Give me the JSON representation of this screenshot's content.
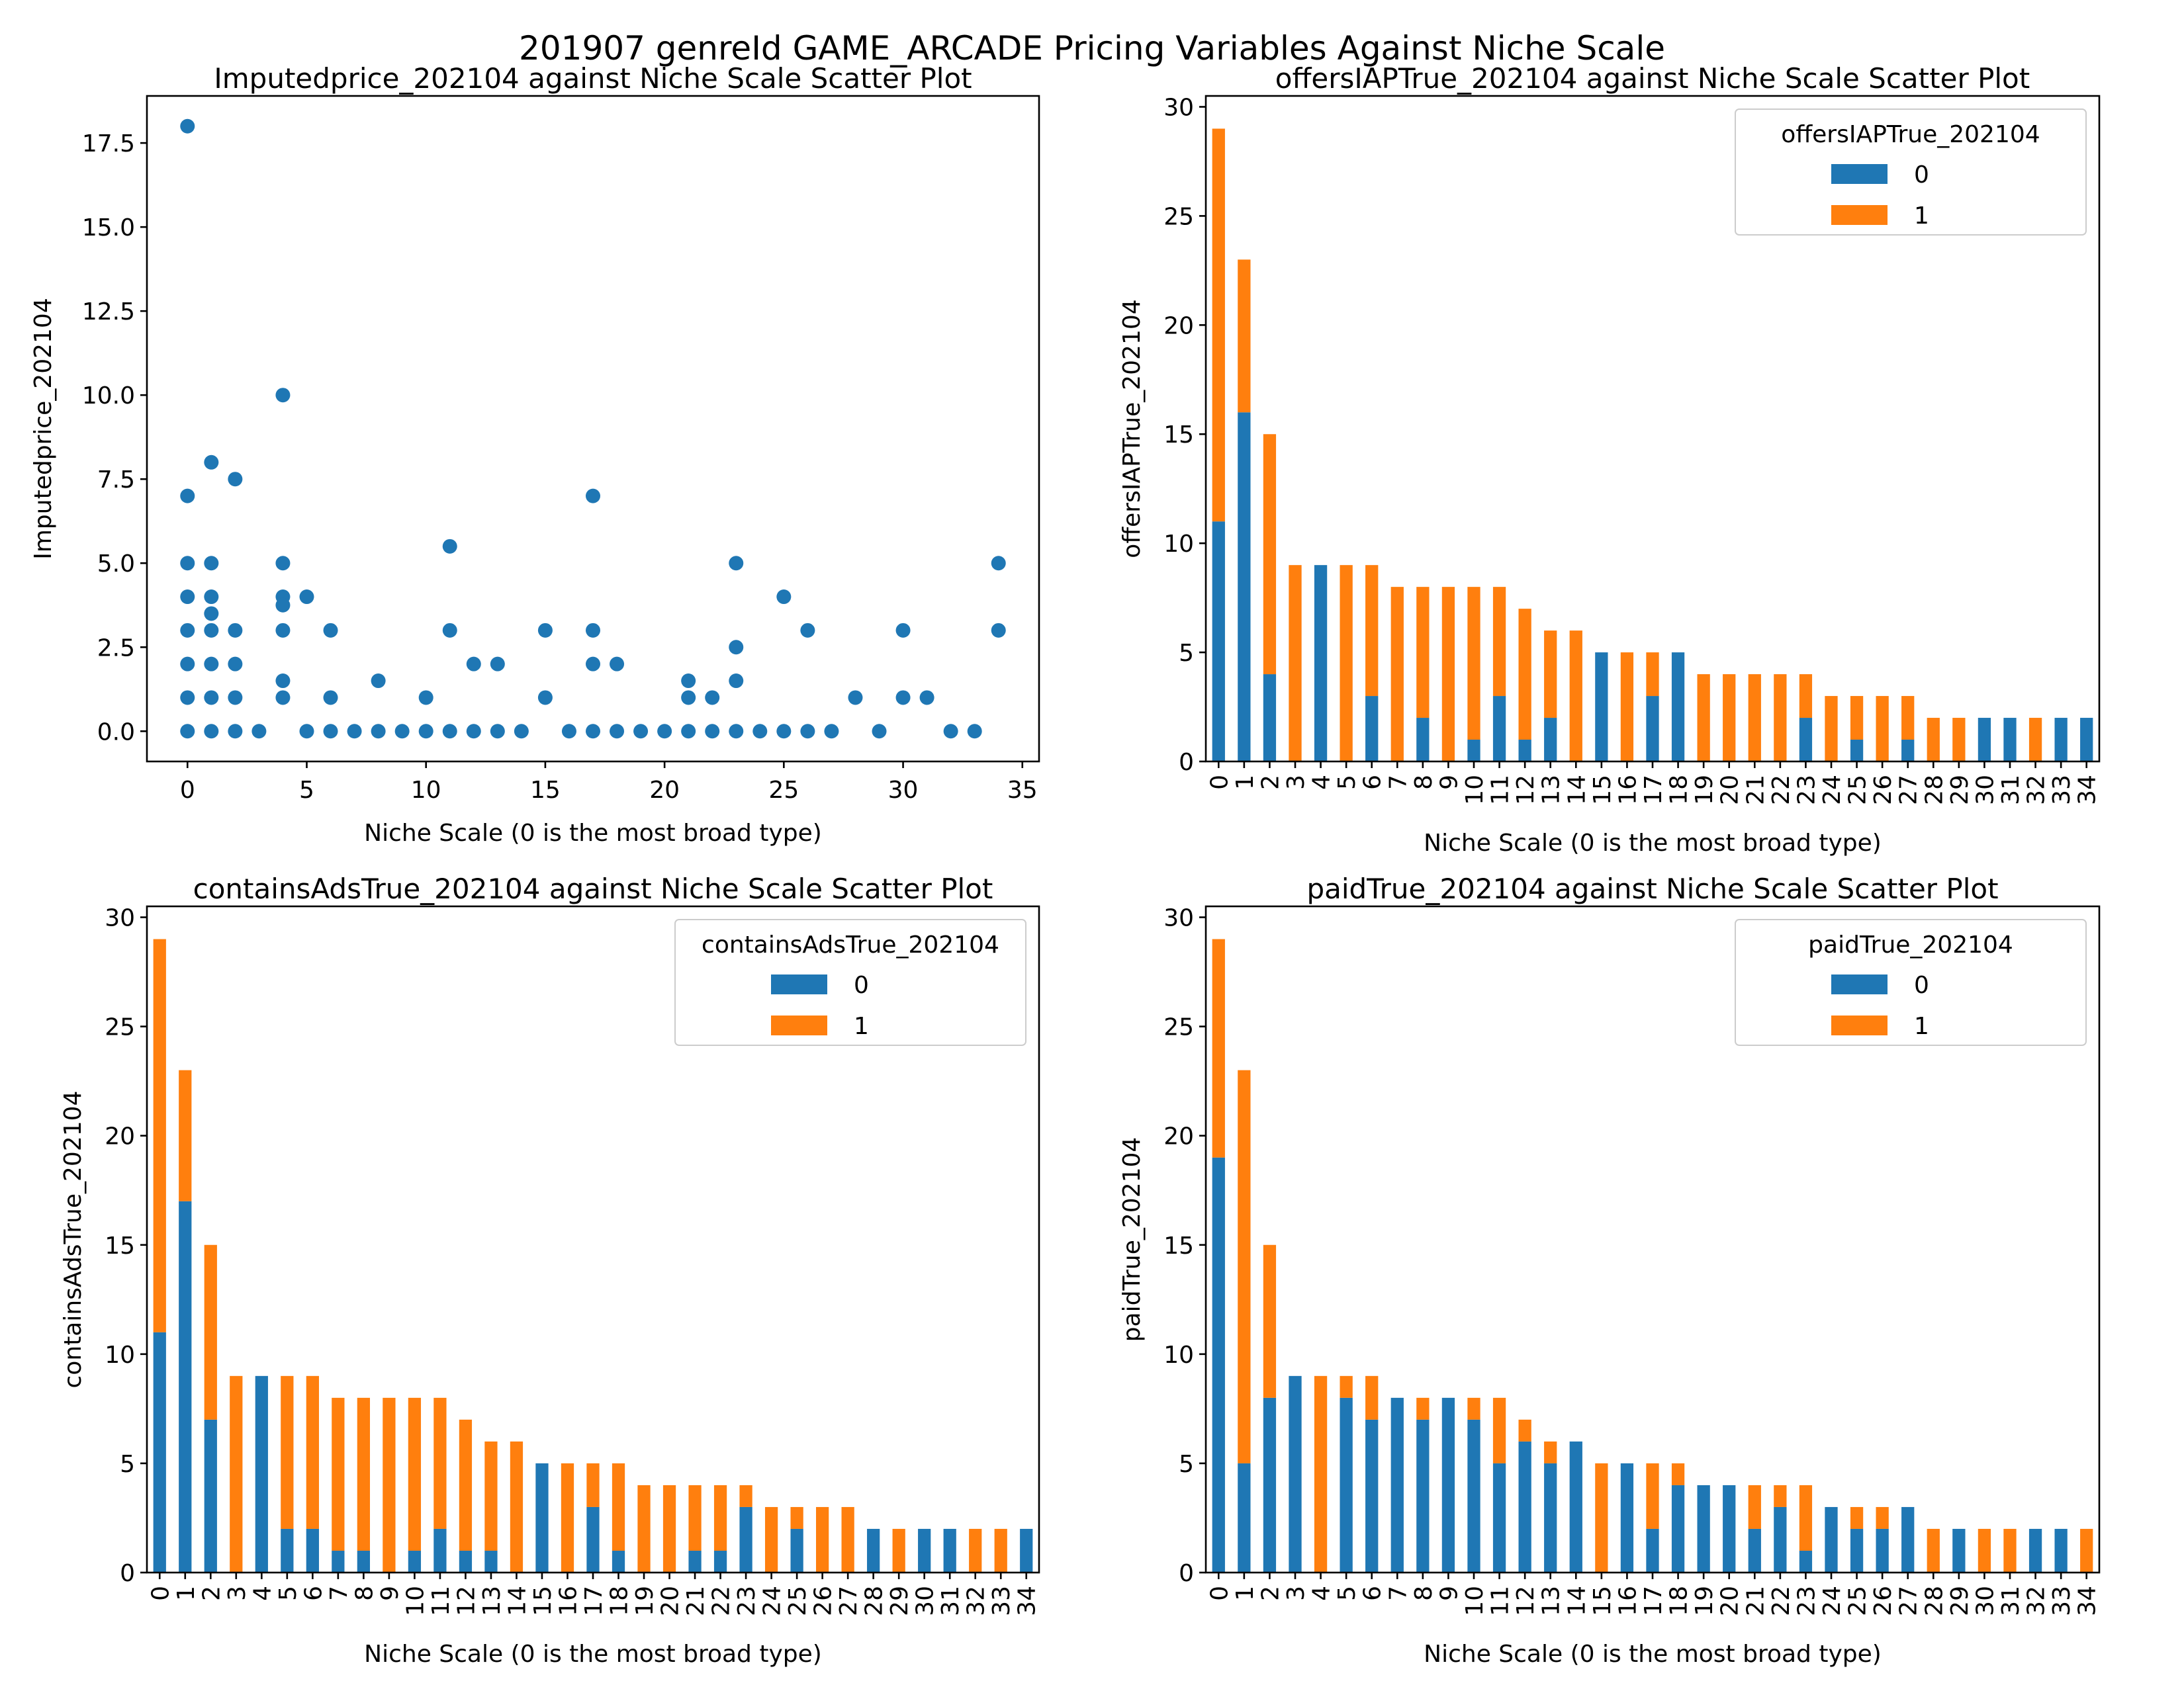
{
  "figure": {
    "suptitle": "201907 genreId GAME_ARCADE Pricing Variables Against Niche Scale",
    "colors": {
      "series0": "#1f77b4",
      "series1": "#ff7f0e"
    }
  },
  "chart_data": [
    {
      "type": "scatter",
      "title": "Imputedprice_202104 against Niche Scale Scatter Plot",
      "xlabel": "Niche Scale (0 is the most broad type)",
      "ylabel": "Imputedprice_202104",
      "xlim": [
        -1.7,
        35.7
      ],
      "ylim": [
        -0.9,
        18.9
      ],
      "xticks": [
        0,
        5,
        10,
        15,
        20,
        25,
        30,
        35
      ],
      "yticks": [
        0,
        2.5,
        5,
        7.5,
        10,
        12.5,
        15,
        17.5
      ],
      "ytick_labels": [
        "0.0",
        "2.5",
        "5.0",
        "7.5",
        "10.0",
        "12.5",
        "15.0",
        "17.5"
      ],
      "points": [
        [
          0,
          18
        ],
        [
          0,
          7
        ],
        [
          0,
          5
        ],
        [
          0,
          4
        ],
        [
          0,
          3
        ],
        [
          0,
          2
        ],
        [
          0,
          1
        ],
        [
          0,
          0
        ],
        [
          1,
          8
        ],
        [
          1,
          5
        ],
        [
          1,
          4
        ],
        [
          1,
          3.5
        ],
        [
          1,
          3
        ],
        [
          1,
          2
        ],
        [
          1,
          1
        ],
        [
          1,
          0
        ],
        [
          2,
          7.5
        ],
        [
          2,
          3
        ],
        [
          2,
          2
        ],
        [
          2,
          1
        ],
        [
          2,
          0
        ],
        [
          3,
          0
        ],
        [
          4,
          10
        ],
        [
          4,
          5
        ],
        [
          4,
          4
        ],
        [
          4,
          3.75
        ],
        [
          4,
          3
        ],
        [
          4,
          1.5
        ],
        [
          4,
          1
        ],
        [
          5,
          4
        ],
        [
          5,
          0
        ],
        [
          6,
          3
        ],
        [
          6,
          1
        ],
        [
          6,
          0
        ],
        [
          7,
          0
        ],
        [
          8,
          1.5
        ],
        [
          8,
          0
        ],
        [
          9,
          0
        ],
        [
          10,
          1
        ],
        [
          10,
          0
        ],
        [
          11,
          5.5
        ],
        [
          11,
          3
        ],
        [
          11,
          0
        ],
        [
          12,
          2
        ],
        [
          12,
          0
        ],
        [
          13,
          2
        ],
        [
          13,
          0
        ],
        [
          14,
          0
        ],
        [
          15,
          3
        ],
        [
          15,
          1
        ],
        [
          16,
          0
        ],
        [
          17,
          7
        ],
        [
          17,
          3
        ],
        [
          17,
          2
        ],
        [
          17,
          0
        ],
        [
          18,
          2
        ],
        [
          18,
          0
        ],
        [
          19,
          0
        ],
        [
          20,
          0
        ],
        [
          21,
          1.5
        ],
        [
          21,
          1
        ],
        [
          21,
          0
        ],
        [
          22,
          1
        ],
        [
          22,
          0
        ],
        [
          23,
          5
        ],
        [
          23,
          2.5
        ],
        [
          23,
          1.5
        ],
        [
          23,
          0
        ],
        [
          24,
          0
        ],
        [
          25,
          4
        ],
        [
          25,
          0
        ],
        [
          26,
          3
        ],
        [
          26,
          0
        ],
        [
          27,
          0
        ],
        [
          28,
          1
        ],
        [
          29,
          0
        ],
        [
          30,
          3
        ],
        [
          30,
          1
        ],
        [
          31,
          1
        ],
        [
          32,
          0
        ],
        [
          33,
          0
        ],
        [
          34,
          5
        ],
        [
          34,
          3
        ]
      ]
    },
    {
      "type": "bar",
      "stacked": true,
      "title": "offersIAPTrue_202104 against Niche Scale Scatter Plot",
      "xlabel": "Niche Scale (0 is the most broad type)",
      "ylabel": "offersIAPTrue_202104",
      "ylim": [
        0,
        30.5
      ],
      "yticks": [
        0,
        5,
        10,
        15,
        20,
        25,
        30
      ],
      "legend": {
        "title": "offersIAPTrue_202104",
        "location": "top-right"
      },
      "categories": [
        "0",
        "1",
        "2",
        "3",
        "4",
        "5",
        "6",
        "7",
        "8",
        "9",
        "10",
        "11",
        "12",
        "13",
        "14",
        "15",
        "16",
        "17",
        "18",
        "19",
        "20",
        "21",
        "22",
        "23",
        "24",
        "25",
        "26",
        "27",
        "28",
        "29",
        "30",
        "31",
        "32",
        "33",
        "34"
      ],
      "series": [
        {
          "name": "0",
          "values": [
            11,
            16,
            4,
            0,
            9,
            0,
            3,
            0,
            2,
            0,
            1,
            3,
            1,
            2,
            0,
            5,
            0,
            3,
            5,
            0,
            0,
            0,
            0,
            2,
            0,
            1,
            0,
            1,
            0,
            0,
            2,
            2,
            0,
            2,
            2
          ]
        },
        {
          "name": "1",
          "values": [
            18,
            7,
            11,
            9,
            0,
            9,
            6,
            8,
            6,
            8,
            7,
            5,
            6,
            4,
            6,
            0,
            5,
            2,
            0,
            4,
            4,
            4,
            4,
            2,
            3,
            2,
            3,
            2,
            2,
            2,
            0,
            0,
            2,
            0,
            0
          ]
        }
      ]
    },
    {
      "type": "bar",
      "stacked": true,
      "title": "containsAdsTrue_202104 against Niche Scale Scatter Plot",
      "xlabel": "Niche Scale (0 is the most broad type)",
      "ylabel": "containsAdsTrue_202104",
      "ylim": [
        0,
        30.5
      ],
      "yticks": [
        0,
        5,
        10,
        15,
        20,
        25,
        30
      ],
      "legend": {
        "title": "containsAdsTrue_202104",
        "location": "top-right"
      },
      "categories": [
        "0",
        "1",
        "2",
        "3",
        "4",
        "5",
        "6",
        "7",
        "8",
        "9",
        "10",
        "11",
        "12",
        "13",
        "14",
        "15",
        "16",
        "17",
        "18",
        "19",
        "20",
        "21",
        "22",
        "23",
        "24",
        "25",
        "26",
        "27",
        "28",
        "29",
        "30",
        "31",
        "32",
        "33",
        "34"
      ],
      "series": [
        {
          "name": "0",
          "values": [
            11,
            17,
            7,
            0,
            9,
            2,
            2,
            1,
            1,
            0,
            1,
            2,
            1,
            1,
            0,
            5,
            0,
            3,
            1,
            0,
            0,
            1,
            1,
            3,
            0,
            2,
            0,
            0,
            2,
            0,
            2,
            2,
            0,
            0,
            2
          ]
        },
        {
          "name": "1",
          "values": [
            18,
            6,
            8,
            9,
            0,
            7,
            7,
            7,
            7,
            8,
            7,
            6,
            6,
            5,
            6,
            0,
            5,
            2,
            4,
            4,
            4,
            3,
            3,
            1,
            3,
            1,
            3,
            3,
            0,
            2,
            0,
            0,
            2,
            2,
            0
          ]
        }
      ]
    },
    {
      "type": "bar",
      "stacked": true,
      "title": "paidTrue_202104 against Niche Scale Scatter Plot",
      "xlabel": "Niche Scale (0 is the most broad type)",
      "ylabel": "paidTrue_202104",
      "ylim": [
        0,
        30.5
      ],
      "yticks": [
        0,
        5,
        10,
        15,
        20,
        25,
        30
      ],
      "legend": {
        "title": "paidTrue_202104",
        "location": "top-right"
      },
      "categories": [
        "0",
        "1",
        "2",
        "3",
        "4",
        "5",
        "6",
        "7",
        "8",
        "9",
        "10",
        "11",
        "12",
        "13",
        "14",
        "15",
        "16",
        "17",
        "18",
        "19",
        "20",
        "21",
        "22",
        "23",
        "24",
        "25",
        "26",
        "27",
        "28",
        "29",
        "30",
        "31",
        "32",
        "33",
        "34"
      ],
      "series": [
        {
          "name": "0",
          "values": [
            19,
            5,
            8,
            9,
            0,
            8,
            7,
            8,
            7,
            8,
            7,
            5,
            6,
            5,
            6,
            0,
            5,
            2,
            4,
            4,
            4,
            2,
            3,
            1,
            3,
            2,
            2,
            3,
            0,
            2,
            0,
            0,
            2,
            2,
            0
          ]
        },
        {
          "name": "1",
          "values": [
            10,
            18,
            7,
            0,
            9,
            1,
            2,
            0,
            1,
            0,
            1,
            3,
            1,
            1,
            0,
            5,
            0,
            3,
            1,
            0,
            0,
            2,
            1,
            3,
            0,
            1,
            1,
            0,
            2,
            0,
            2,
            2,
            0,
            0,
            2
          ]
        }
      ]
    }
  ]
}
